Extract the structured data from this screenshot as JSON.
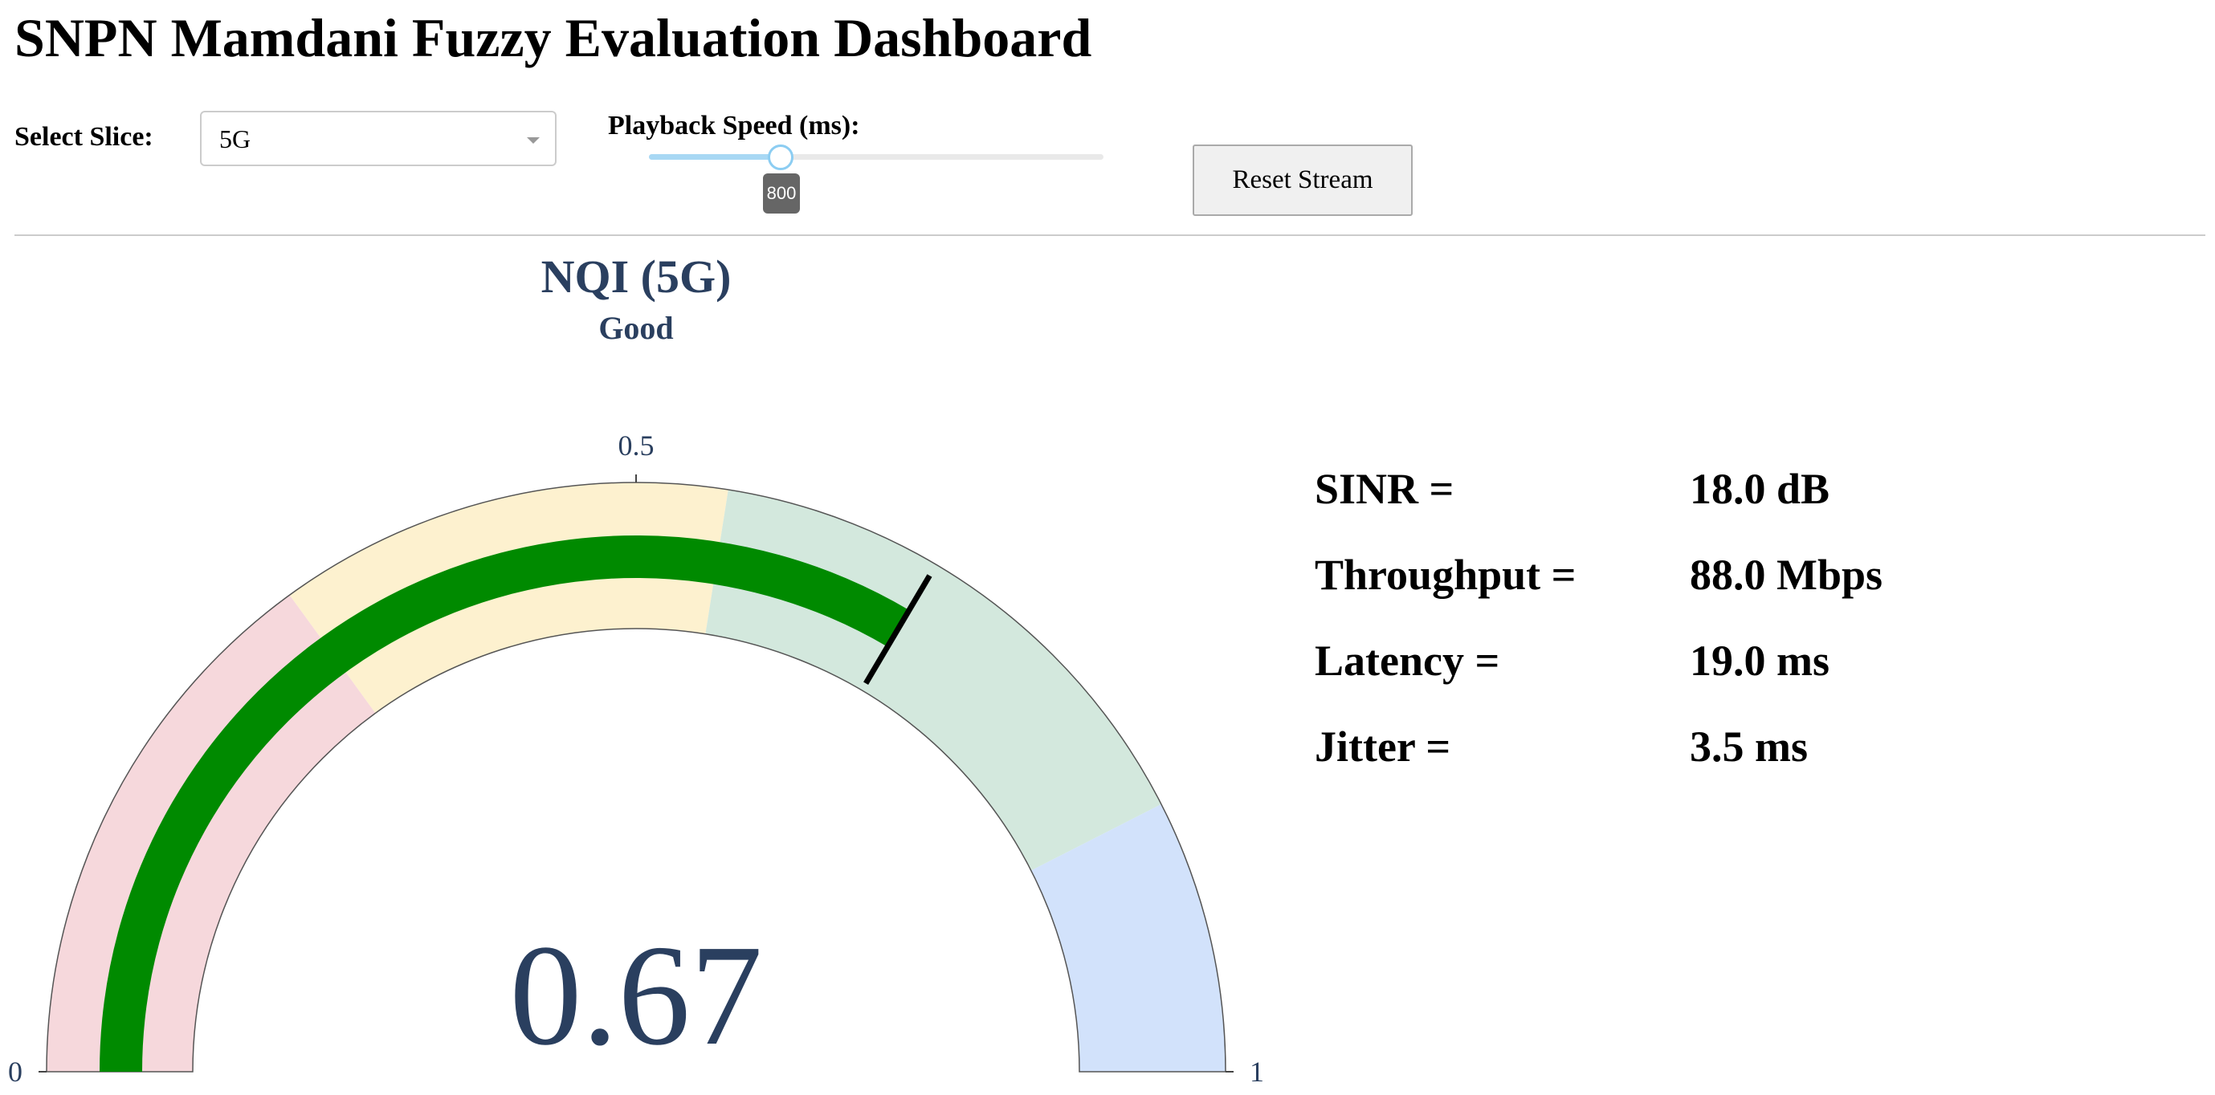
{
  "header": {
    "title": "SNPN Mamdani Fuzzy Evaluation Dashboard"
  },
  "controls": {
    "slice_label": "Select Slice:",
    "slice_value": "5G",
    "speed_label": "Playback Speed (ms):",
    "speed_value": 800,
    "reset_button": "Reset Stream"
  },
  "chart_data": {
    "type": "gauge",
    "title": "NQI (5G)",
    "subtitle": "Good",
    "value": 0.67,
    "range": [
      0,
      1
    ],
    "ticks": [
      0,
      0.5,
      1
    ],
    "bar_color": "#008a00",
    "steps": [
      {
        "range": [
          0,
          0.3
        ],
        "color": "#f6d8dc"
      },
      {
        "range": [
          0.3,
          0.55
        ],
        "color": "#fdf1cf"
      },
      {
        "range": [
          0.55,
          0.85
        ],
        "color": "#d3e8dd"
      },
      {
        "range": [
          0.85,
          1
        ],
        "color": "#d2e2fb"
      }
    ],
    "threshold": 0.67,
    "threshold_color": "#000000"
  },
  "metrics": [
    {
      "label": "SINR =",
      "value": "18.0 dB"
    },
    {
      "label": "Throughput =",
      "value": "88.0 Mbps"
    },
    {
      "label": "Latency =",
      "value": "19.0 ms"
    },
    {
      "label": "Jitter =",
      "value": "3.5 ms"
    }
  ]
}
